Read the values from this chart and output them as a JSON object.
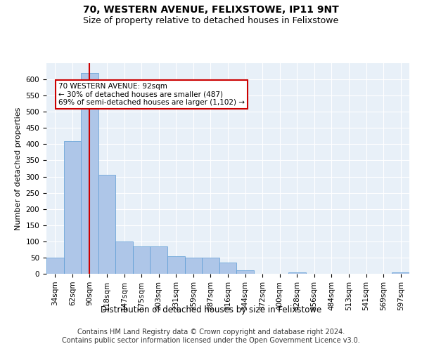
{
  "title": "70, WESTERN AVENUE, FELIXSTOWE, IP11 9NT",
  "subtitle": "Size of property relative to detached houses in Felixstowe",
  "xlabel": "Distribution of detached houses by size in Felixstowe",
  "ylabel": "Number of detached properties",
  "annotation_line": "70 WESTERN AVENUE: 92sqm\n← 30% of detached houses are smaller (487)\n69% of semi-detached houses are larger (1,102) →",
  "bin_labels": [
    "34sqm",
    "62sqm",
    "90sqm",
    "118sqm",
    "147sqm",
    "175sqm",
    "203sqm",
    "231sqm",
    "259sqm",
    "287sqm",
    "316sqm",
    "344sqm",
    "372sqm",
    "400sqm",
    "428sqm",
    "456sqm",
    "484sqm",
    "513sqm",
    "541sqm",
    "569sqm",
    "597sqm"
  ],
  "bar_values": [
    50,
    410,
    620,
    305,
    100,
    85,
    85,
    55,
    50,
    50,
    35,
    10,
    0,
    0,
    5,
    0,
    0,
    0,
    0,
    0,
    5
  ],
  "bar_color": "#aec6e8",
  "bar_edge_color": "#5b9bd5",
  "vline_color": "#cc0000",
  "vline_pos": 2,
  "annotation_box_color": "#cc0000",
  "ylim": [
    0,
    650
  ],
  "yticks": [
    0,
    50,
    100,
    150,
    200,
    250,
    300,
    350,
    400,
    450,
    500,
    550,
    600
  ],
  "background_color": "#e8f0f8",
  "footer_text": "Contains HM Land Registry data © Crown copyright and database right 2024.\nContains public sector information licensed under the Open Government Licence v3.0.",
  "title_fontsize": 10,
  "subtitle_fontsize": 9,
  "xlabel_fontsize": 8.5,
  "ylabel_fontsize": 8,
  "tick_fontsize": 7.5,
  "footer_fontsize": 7,
  "annotation_fontsize": 7.5
}
